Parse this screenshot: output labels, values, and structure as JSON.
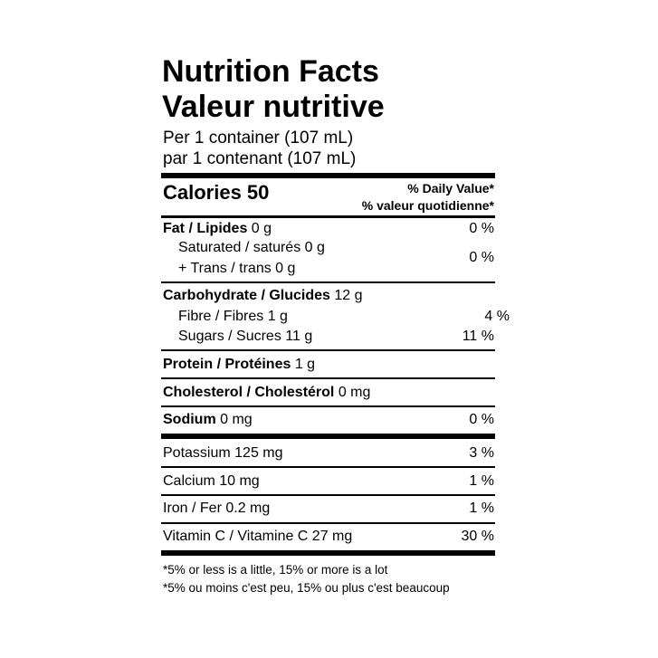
{
  "title": "Nutrition Facts",
  "title_fr": "Valeur nutritive",
  "serving": [
    "Per 1 container (107 mL)",
    "par 1 contenant (107 mL)"
  ],
  "calories": "Calories 50",
  "daily_value_header": [
    "% Daily Value*",
    "% valeur quotidienne*"
  ],
  "rows": [
    {
      "name": "Fat / Lipides",
      "amount": "0 g",
      "dv": "0 %"
    },
    {
      "name": "Saturated / saturés 0 g",
      "name2": "+ Trans / trans 0 g",
      "dv": "0 %"
    },
    {
      "name": "Carbohydrate / Glucides",
      "amount": "12 g"
    },
    {
      "name": "Fibre / Fibres 1 g",
      "dv": "4 %"
    },
    {
      "name": "Sugars / Sucres 11 g",
      "dv": "11 %"
    },
    {
      "name": "Protein / Protéines",
      "amount": "1 g"
    },
    {
      "name": "Cholesterol / Cholestérol",
      "amount": "0 mg"
    },
    {
      "name": "Sodium",
      "amount": "0 mg",
      "dv": "0 %"
    },
    {
      "name": "Potassium 125 mg",
      "dv": "3 %"
    },
    {
      "name": "Calcium 10 mg",
      "dv": "1 %"
    },
    {
      "name": "Iron / Fer 0.2 mg",
      "dv": "1 %"
    },
    {
      "name": "Vitamin C / Vitamine C 27 mg",
      "dv": "30 %"
    }
  ],
  "footnotes": [
    "*5% or less is a little, 15% or more is a lot",
    "*5% ou moins c'est peu, 15% ou plus c'est beaucoup"
  ]
}
